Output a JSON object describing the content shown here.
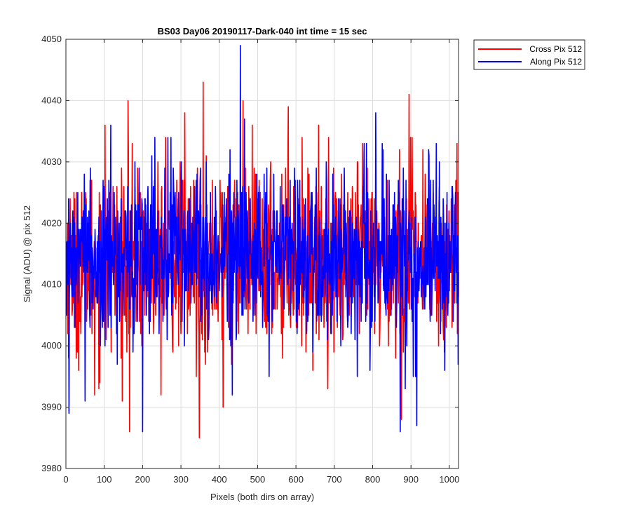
{
  "chart_data": {
    "type": "line",
    "title": "BS03 Day06 20190117-Dark-040 int time = 15 sec",
    "xlabel": "Pixels (both dirs on array)",
    "ylabel": "Signal (ADU) @ pix 512",
    "xlim": [
      0,
      1024
    ],
    "ylim": [
      3980,
      4050
    ],
    "xticks": [
      0,
      100,
      200,
      300,
      400,
      500,
      600,
      700,
      800,
      900,
      1000
    ],
    "yticks": [
      3980,
      3990,
      4000,
      4010,
      4020,
      4030,
      4040,
      4050
    ],
    "grid": true,
    "legend_position": "outside-top-right",
    "series": [
      {
        "name": "Cross Pix 512",
        "color": "#ff0000",
        "x_start": 1,
        "x_end": 1024,
        "mean": 4014,
        "noise_std": 7.3,
        "notable_points": [
          {
            "x": 27,
            "y": 3998
          },
          {
            "x": 75,
            "y": 3992
          },
          {
            "x": 102,
            "y": 4036
          },
          {
            "x": 162,
            "y": 4040
          },
          {
            "x": 166,
            "y": 3986
          },
          {
            "x": 260,
            "y": 4034
          },
          {
            "x": 310,
            "y": 4038
          },
          {
            "x": 348,
            "y": 3985
          },
          {
            "x": 358,
            "y": 4043
          },
          {
            "x": 410,
            "y": 3990
          },
          {
            "x": 462,
            "y": 4040
          },
          {
            "x": 580,
            "y": 4039
          },
          {
            "x": 875,
            "y": 3988
          },
          {
            "x": 895,
            "y": 4041
          },
          {
            "x": 1020,
            "y": 4033
          }
        ]
      },
      {
        "name": "Along Pix 512",
        "color": "#0000ff",
        "x_start": 1,
        "x_end": 1024,
        "mean": 4015,
        "noise_std": 7.0,
        "notable_points": [
          {
            "x": 8,
            "y": 3989
          },
          {
            "x": 50,
            "y": 3991
          },
          {
            "x": 200,
            "y": 3986
          },
          {
            "x": 266,
            "y": 4034
          },
          {
            "x": 455,
            "y": 4049
          },
          {
            "x": 808,
            "y": 4038
          },
          {
            "x": 872,
            "y": 3986
          },
          {
            "x": 915,
            "y": 3987
          },
          {
            "x": 1023,
            "y": 3997
          }
        ]
      }
    ]
  }
}
